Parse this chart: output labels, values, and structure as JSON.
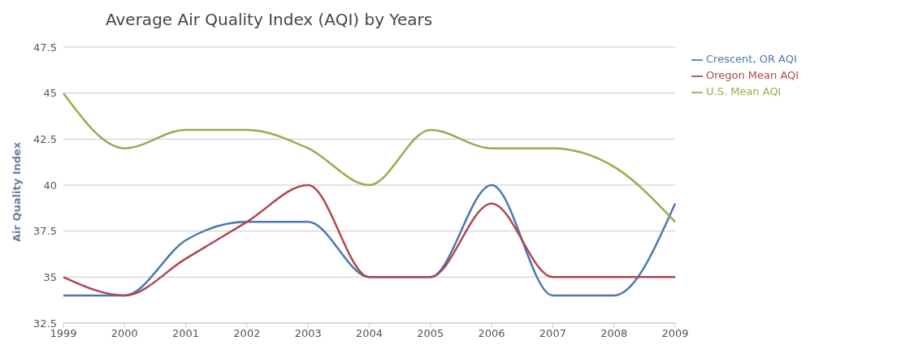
{
  "chart_data": {
    "type": "line",
    "title": "Average Air Quality Index (AQI) by Years",
    "ylabel": "Air Quality Index",
    "categories": [
      "1999",
      "2000",
      "2001",
      "2002",
      "2003",
      "2004",
      "2005",
      "2006",
      "2007",
      "2008",
      "2009"
    ],
    "series": [
      {
        "name": "Crescent, OR AQI",
        "color": "#4a78b0",
        "values": [
          34,
          34,
          37,
          38,
          38,
          35,
          35,
          40,
          34,
          34,
          39
        ]
      },
      {
        "name": "Oregon Mean AQI",
        "color": "#b0464f",
        "values": [
          35,
          34,
          36,
          38,
          40,
          35,
          35,
          39,
          35,
          35,
          35
        ]
      },
      {
        "name": "U.S. Mean AQI",
        "color": "#9aab4c",
        "values": [
          45,
          42,
          43,
          43,
          42,
          40,
          43,
          42,
          42,
          41,
          38
        ]
      }
    ],
    "ylim": [
      32.5,
      47.5
    ],
    "yticks": [
      32.5,
      35,
      37.5,
      40,
      42.5,
      45,
      47.5
    ],
    "grid": "y",
    "legend": "top right",
    "marker": "none",
    "line_style": "solid"
  }
}
